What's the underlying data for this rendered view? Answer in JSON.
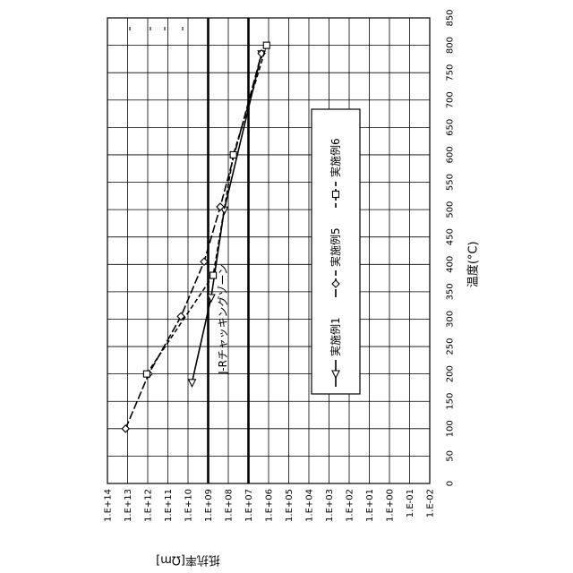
{
  "chart_data": {
    "type": "line",
    "orientation": "rotated-90-cw",
    "xlabel": "温度(°C)",
    "ylabel": "抵抗率[Ωm]",
    "x_ticks": [
      "0",
      "50",
      "100",
      "150",
      "200",
      "250",
      "300",
      "350",
      "400",
      "450",
      "500",
      "550",
      "600",
      "650",
      "700",
      "750",
      "800",
      "850"
    ],
    "xlim": [
      0,
      850
    ],
    "y_ticks": [
      "1.E+14",
      "1.E+13",
      "1.E+12",
      "1.E+11",
      "1.E+10",
      "1.E+09",
      "1.E+08",
      "1.E+07",
      "1.E+06",
      "1.E+05",
      "1.E+04",
      "1.E+03",
      "1.E+02",
      "1.E+01",
      "1.E+00",
      "1.E-01",
      "1.E-02"
    ],
    "y_exponents": [
      14,
      13,
      12,
      11,
      10,
      9,
      8,
      7,
      6,
      5,
      4,
      3,
      2,
      1,
      0,
      -1,
      -2
    ],
    "ylim_exponent": [
      -2,
      14
    ],
    "yscale": "log",
    "grid": true,
    "legend_position": "right",
    "reference_lines": [
      {
        "y_exponent": 9
      },
      {
        "y_exponent": 7
      }
    ],
    "zone_label": "J-Rチャッキングゾーン",
    "series": [
      {
        "name": "実施例1",
        "marker": "triangle",
        "dash": "solid",
        "x": [
          185,
          340,
          500,
          785
        ],
        "y_exponent": [
          9.8,
          8.85,
          8.2,
          6.35
        ]
      },
      {
        "name": "実施例5",
        "marker": "diamond",
        "dash": "long-dash",
        "x": [
          100,
          200,
          305,
          405,
          505,
          785
        ],
        "y_exponent": [
          13.1,
          11.95,
          10.35,
          9.2,
          8.4,
          6.35
        ]
      },
      {
        "name": "実施例6",
        "marker": "square",
        "dash": "short-dash",
        "x": [
          200,
          380,
          600,
          800
        ],
        "y_exponent": [
          12.05,
          8.75,
          7.75,
          6.1
        ]
      }
    ]
  }
}
